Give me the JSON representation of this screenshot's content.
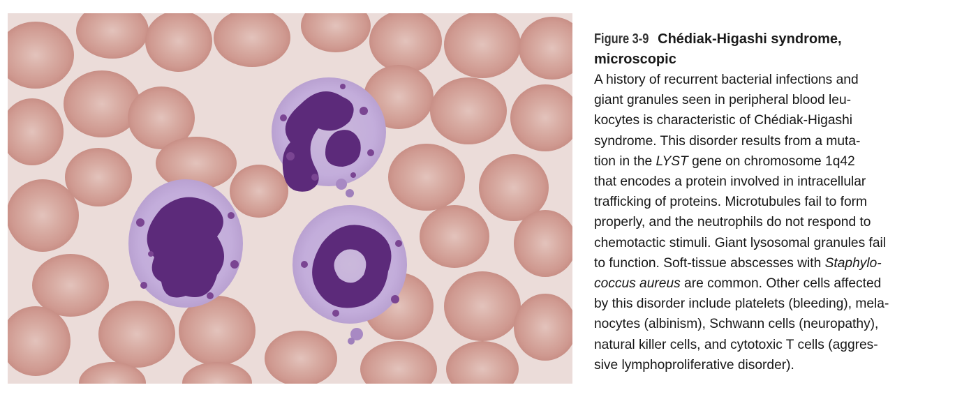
{
  "figure": {
    "label": "Figure 3-9",
    "title_line1": "Chédiak-Higashi syndrome,",
    "title_line2": "microscopic",
    "body": [
      [
        {
          "t": "A history of recurrent bacterial infections and"
        }
      ],
      [
        {
          "t": "giant granules seen in peripheral blood leu-"
        }
      ],
      [
        {
          "t": "kocytes is characteristic of Chédiak-Higashi"
        }
      ],
      [
        {
          "t": "syndrome. This disorder results from a muta-"
        }
      ],
      [
        {
          "t": "tion in the "
        },
        {
          "t": "LYST",
          "i": true
        },
        {
          "t": " gene on chromosome 1q42"
        }
      ],
      [
        {
          "t": "that encodes a protein involved in intracellular"
        }
      ],
      [
        {
          "t": "trafficking of proteins. Microtubules fail to form"
        }
      ],
      [
        {
          "t": "properly, and the neutrophils do not respond to"
        }
      ],
      [
        {
          "t": "chemotactic stimuli. Giant lysosomal granules fail"
        }
      ],
      [
        {
          "t": "to function. Soft-tissue abscesses with "
        },
        {
          "t": "Staphylo-",
          "i": true
        }
      ],
      [
        {
          "t": "coccus  aureus",
          "i": true
        },
        {
          "t": " are common. Other cells affected"
        }
      ],
      [
        {
          "t": "by this disorder include platelets (bleeding), mela-"
        }
      ],
      [
        {
          "t": "nocytes (albinism), Schwann cells (neuropathy),"
        }
      ],
      [
        {
          "t": "natural killer cells, and cytotoxic T cells (aggres-"
        }
      ],
      [
        {
          "t": "sive lymphoproliferative disorder)."
        }
      ]
    ]
  },
  "colors": {
    "background": "#ebdcd9",
    "rbc": "#d19d93",
    "rbc_pale": "#e2c2bb",
    "cytoplasm": "#c7b4d6",
    "nucleus": "#5a2a78",
    "granule": "#7a4592"
  }
}
